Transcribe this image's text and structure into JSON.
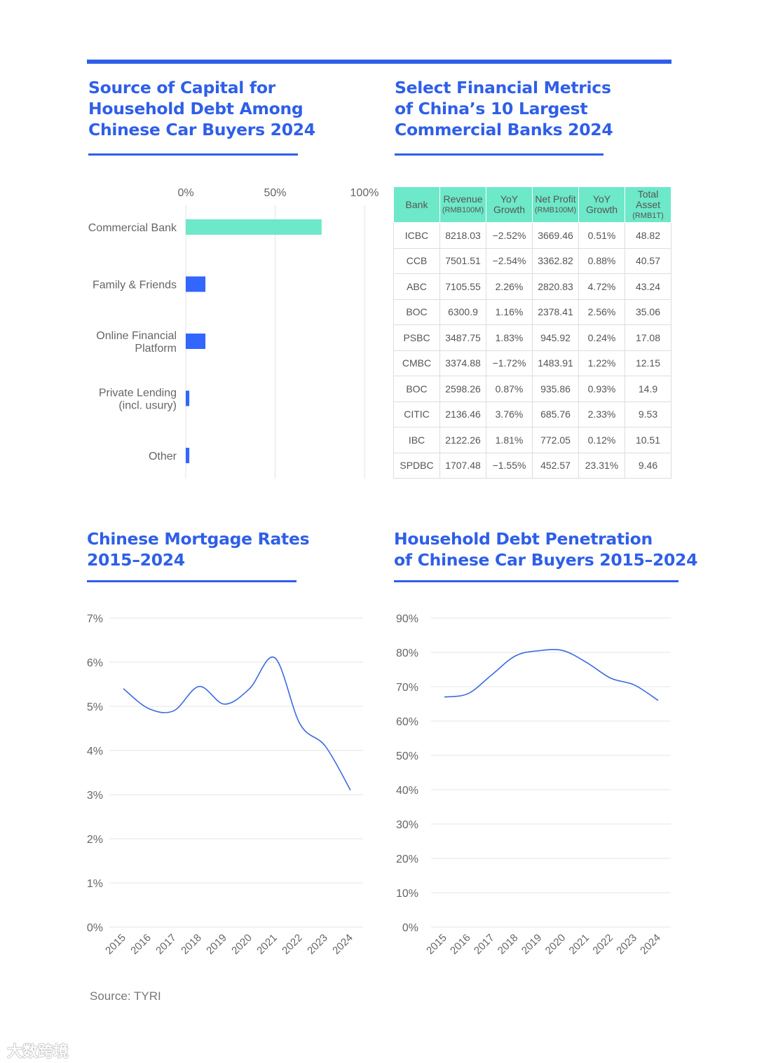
{
  "colors": {
    "accent": "#2f5fe8",
    "bar_highlight": "#6de8c8",
    "bar": "#3366ff",
    "line": "#3b6ae0",
    "grid": "#e5e5e5"
  },
  "titles": {
    "top_left": [
      "Source of Capital for",
      "Household Debt Among",
      "Chinese Car Buyers 2024"
    ],
    "top_right": [
      "Select Financial Metrics",
      "of China’s 10 Largest",
      "Commercial Banks 2024"
    ],
    "bottom_left": [
      "Chinese Mortgage Rates",
      "2015–2024"
    ],
    "bottom_right": [
      "Household Debt Penetration",
      "of Chinese Car Buyers 2015–2024"
    ]
  },
  "table": {
    "headers": [
      {
        "label": "Bank",
        "unit": ""
      },
      {
        "label": "Revenue",
        "unit": "(RMB100M)"
      },
      {
        "label": "YoY",
        "unit": "Growth"
      },
      {
        "label": "Net Profit",
        "unit": "(RMB100M)"
      },
      {
        "label": "YoY",
        "unit": "Growth"
      },
      {
        "label": "Total Asset",
        "unit": "(RMB1T)"
      }
    ],
    "rows": [
      [
        "ICBC",
        "8218.03",
        "−2.52%",
        "3669.46",
        "0.51%",
        "48.82"
      ],
      [
        "CCB",
        "7501.51",
        "−2.54%",
        "3362.82",
        "0.88%",
        "40.57"
      ],
      [
        "ABC",
        "7105.55",
        "2.26%",
        "2820.83",
        "4.72%",
        "43.24"
      ],
      [
        "BOC",
        "6300.9",
        "1.16%",
        "2378.41",
        "2.56%",
        "35.06"
      ],
      [
        "PSBC",
        "3487.75",
        "1.83%",
        "945.92",
        "0.24%",
        "17.08"
      ],
      [
        "CMBC",
        "3374.88",
        "−1.72%",
        "1483.91",
        "1.22%",
        "12.15"
      ],
      [
        "BOC",
        "2598.26",
        "0.87%",
        "935.86",
        "0.93%",
        "14.9"
      ],
      [
        "CITIC",
        "2136.46",
        "3.76%",
        "685.76",
        "2.33%",
        "9.53"
      ],
      [
        "IBC",
        "2122.26",
        "1.81%",
        "772.05",
        "0.12%",
        "10.51"
      ],
      [
        "SPDBC",
        "1707.48",
        "−1.55%",
        "452.57",
        "23.31%",
        "9.46"
      ]
    ]
  },
  "chart_data": [
    {
      "type": "bar",
      "orientation": "horizontal",
      "title": "Source of Capital for Household Debt Among Chinese Car Buyers 2024",
      "categories": [
        [
          "Commercial Bank"
        ],
        [
          "Family & Friends"
        ],
        [
          "Online Financial",
          "Platform"
        ],
        [
          "Private Lending",
          "(incl. usury)"
        ],
        [
          "Other"
        ]
      ],
      "values": [
        76,
        11,
        11,
        2,
        2
      ],
      "xticks": [
        "0%",
        "50%",
        "100%"
      ],
      "xlim": [
        0,
        100
      ]
    },
    {
      "type": "line",
      "title": "Chinese Mortgage Rates 2015–2024",
      "x": [
        "2015",
        "2016",
        "2017",
        "2018",
        "2019",
        "2020",
        "2021",
        "2022",
        "2023",
        "2024"
      ],
      "values": [
        5.4,
        4.95,
        4.9,
        5.45,
        5.05,
        5.4,
        6.1,
        4.6,
        4.1,
        3.1
      ],
      "yticks": [
        "0%",
        "1%",
        "2%",
        "3%",
        "4%",
        "5%",
        "6%",
        "7%"
      ],
      "ylim": [
        0,
        7
      ]
    },
    {
      "type": "line",
      "title": "Household Debt Penetration of Chinese Car Buyers 2015–2024",
      "x": [
        "2015",
        "2016",
        "2017",
        "2018",
        "2019",
        "2020",
        "2021",
        "2022",
        "2023",
        "2024"
      ],
      "values": [
        67,
        68,
        73.5,
        79,
        80.5,
        80.5,
        77,
        72.5,
        70.5,
        66
      ],
      "yticks": [
        "0%",
        "10%",
        "20%",
        "30%",
        "40%",
        "50%",
        "60%",
        "70%",
        "80%",
        "90%"
      ],
      "ylim": [
        0,
        90
      ]
    }
  ],
  "source": "Source: TYRI",
  "watermark": "大数跨境"
}
